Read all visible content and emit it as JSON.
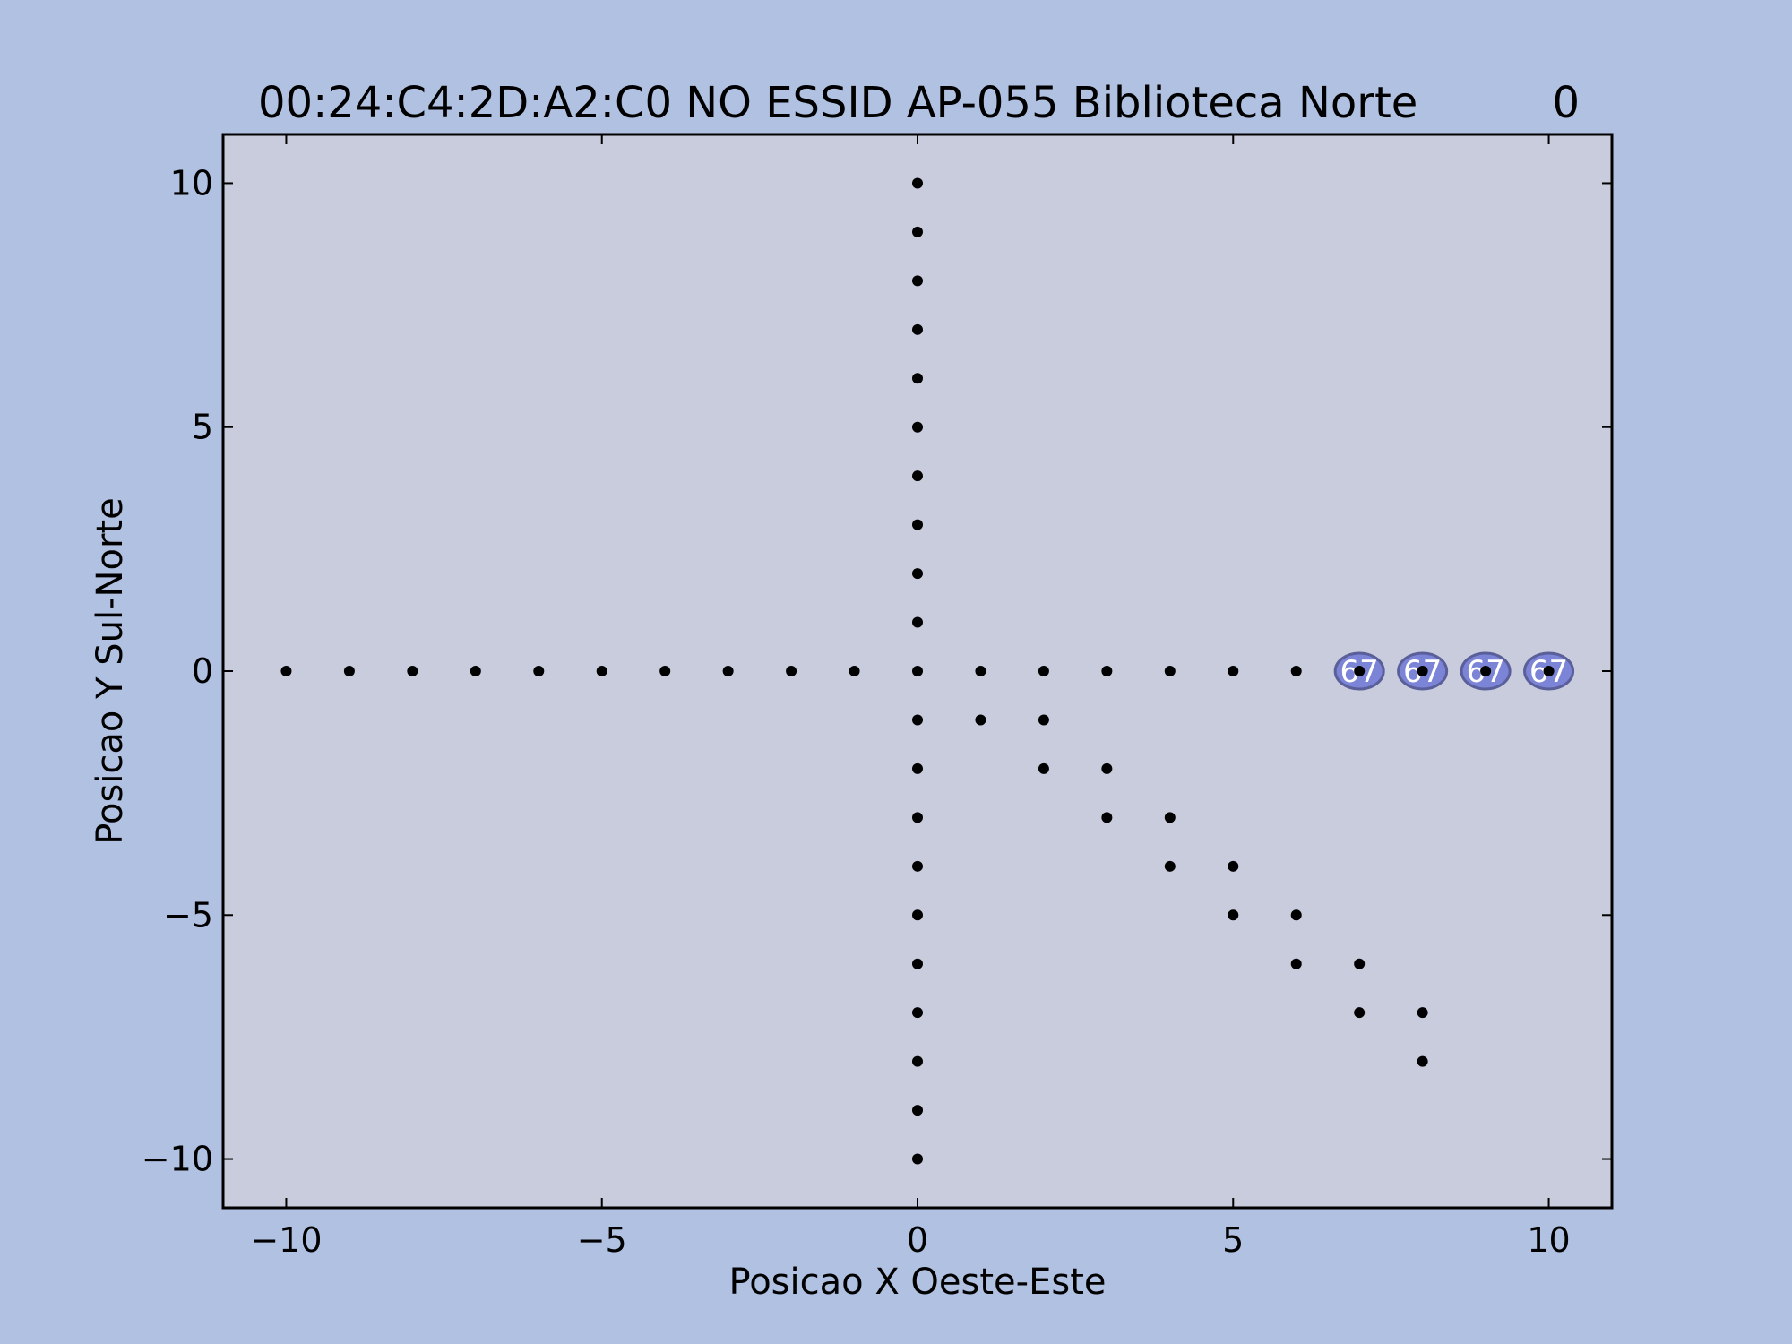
{
  "chart_data": {
    "type": "scatter",
    "title": "00:24:C4:2D:A2:C0 NO ESSID AP-055 Biblioteca Norte",
    "title_right": "0",
    "xlabel": "Posicao X Oeste-Este",
    "ylabel": "Posicao Y Sul-Norte",
    "xlim": [
      -11,
      11
    ],
    "ylim": [
      -11,
      11
    ],
    "xticks": [
      -10,
      -5,
      0,
      5,
      10
    ],
    "yticks": [
      -10,
      -5,
      0,
      5,
      10
    ],
    "xtick_labels": [
      "−10",
      "−5",
      "0",
      "5",
      "10"
    ],
    "ytick_labels": [
      "−10",
      "−5",
      "0",
      "5",
      "10"
    ],
    "grid": false,
    "colors": {
      "figure_bg": "#b0c1e2",
      "plot_bg": "#c8ccdc",
      "point": "#000000",
      "badge_fill": "#7b84d6",
      "badge_stroke": "#5a5f9a",
      "badge_text": "#ffffff"
    },
    "points": [
      [
        -10,
        0
      ],
      [
        -9,
        0
      ],
      [
        -8,
        0
      ],
      [
        -7,
        0
      ],
      [
        -6,
        0
      ],
      [
        -5,
        0
      ],
      [
        -4,
        0
      ],
      [
        -3,
        0
      ],
      [
        -2,
        0
      ],
      [
        -1,
        0
      ],
      [
        0,
        0
      ],
      [
        1,
        0
      ],
      [
        2,
        0
      ],
      [
        3,
        0
      ],
      [
        4,
        0
      ],
      [
        5,
        0
      ],
      [
        6,
        0
      ],
      [
        7,
        0
      ],
      [
        8,
        0
      ],
      [
        9,
        0
      ],
      [
        10,
        0
      ],
      [
        0,
        1
      ],
      [
        0,
        2
      ],
      [
        0,
        3
      ],
      [
        0,
        4
      ],
      [
        0,
        5
      ],
      [
        0,
        6
      ],
      [
        0,
        7
      ],
      [
        0,
        8
      ],
      [
        0,
        9
      ],
      [
        0,
        10
      ],
      [
        0,
        -1
      ],
      [
        0,
        -2
      ],
      [
        0,
        -3
      ],
      [
        0,
        -4
      ],
      [
        0,
        -5
      ],
      [
        0,
        -6
      ],
      [
        0,
        -7
      ],
      [
        0,
        -8
      ],
      [
        0,
        -9
      ],
      [
        0,
        -10
      ],
      [
        1,
        -1
      ],
      [
        2,
        -1
      ],
      [
        2,
        -2
      ],
      [
        3,
        -2
      ],
      [
        3,
        -3
      ],
      [
        4,
        -3
      ],
      [
        4,
        -4
      ],
      [
        5,
        -4
      ],
      [
        5,
        -5
      ],
      [
        6,
        -5
      ],
      [
        6,
        -6
      ],
      [
        7,
        -6
      ],
      [
        7,
        -7
      ],
      [
        8,
        -7
      ],
      [
        8,
        -8
      ]
    ],
    "annotations": [
      {
        "x": 7,
        "y": 0,
        "text": "67"
      },
      {
        "x": 8,
        "y": 0,
        "text": "67"
      },
      {
        "x": 9,
        "y": 0,
        "text": "67"
      },
      {
        "x": 10,
        "y": 0,
        "text": "67"
      }
    ]
  }
}
